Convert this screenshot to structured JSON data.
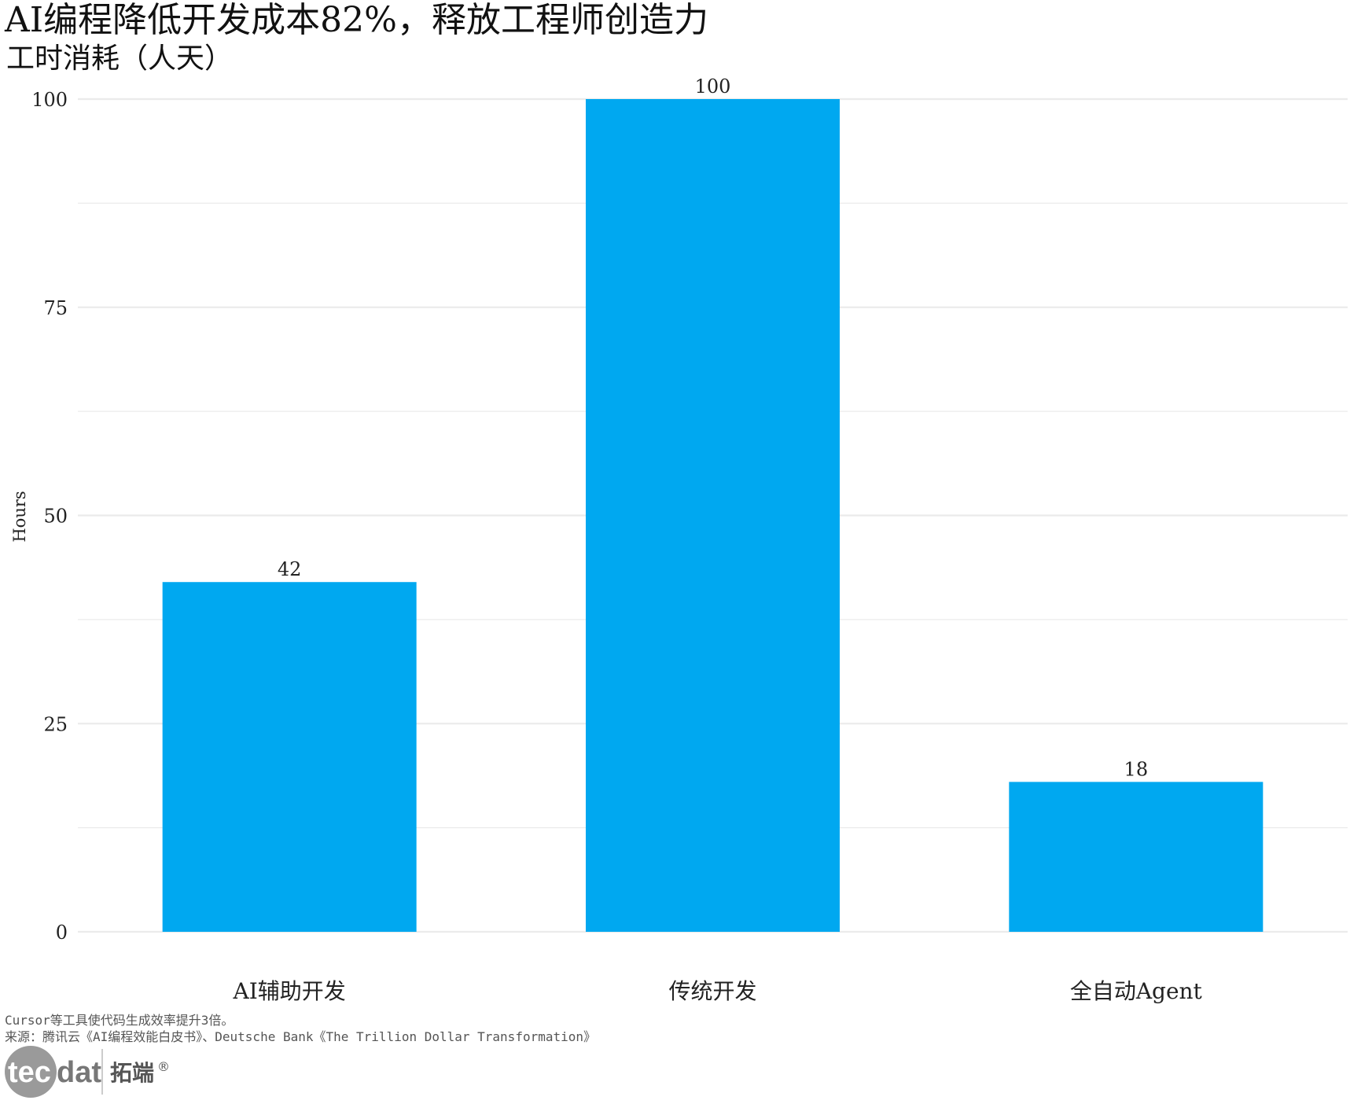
{
  "chart_data": {
    "type": "bar",
    "title": "AI编程降低开发成本82%，释放工程师创造力",
    "subtitle": "工时消耗（人天）",
    "ylabel": "Hours",
    "xlabel": "",
    "categories": [
      "AI辅助开发",
      "传统开发",
      "全自动Agent"
    ],
    "values": [
      42,
      100,
      18
    ],
    "data_labels": [
      "42",
      "100",
      "18"
    ],
    "ylim": [
      0,
      100
    ],
    "yticks": [
      0,
      25,
      50,
      75,
      100
    ],
    "ytick_labels": [
      "0",
      "25",
      "50",
      "75",
      "100"
    ],
    "grid": true,
    "bar_color": "#00A8F0",
    "grid_color": "#EBEBEB"
  },
  "caption": "Cursor等工具使代码生成效率提升3倍。",
  "source": "来源：腾讯云《AI编程效能白皮书》、Deutsche Bank《The Trillion Dollar Transformation》",
  "logo": {
    "text": "tecdat",
    "brand": "拓端®"
  }
}
